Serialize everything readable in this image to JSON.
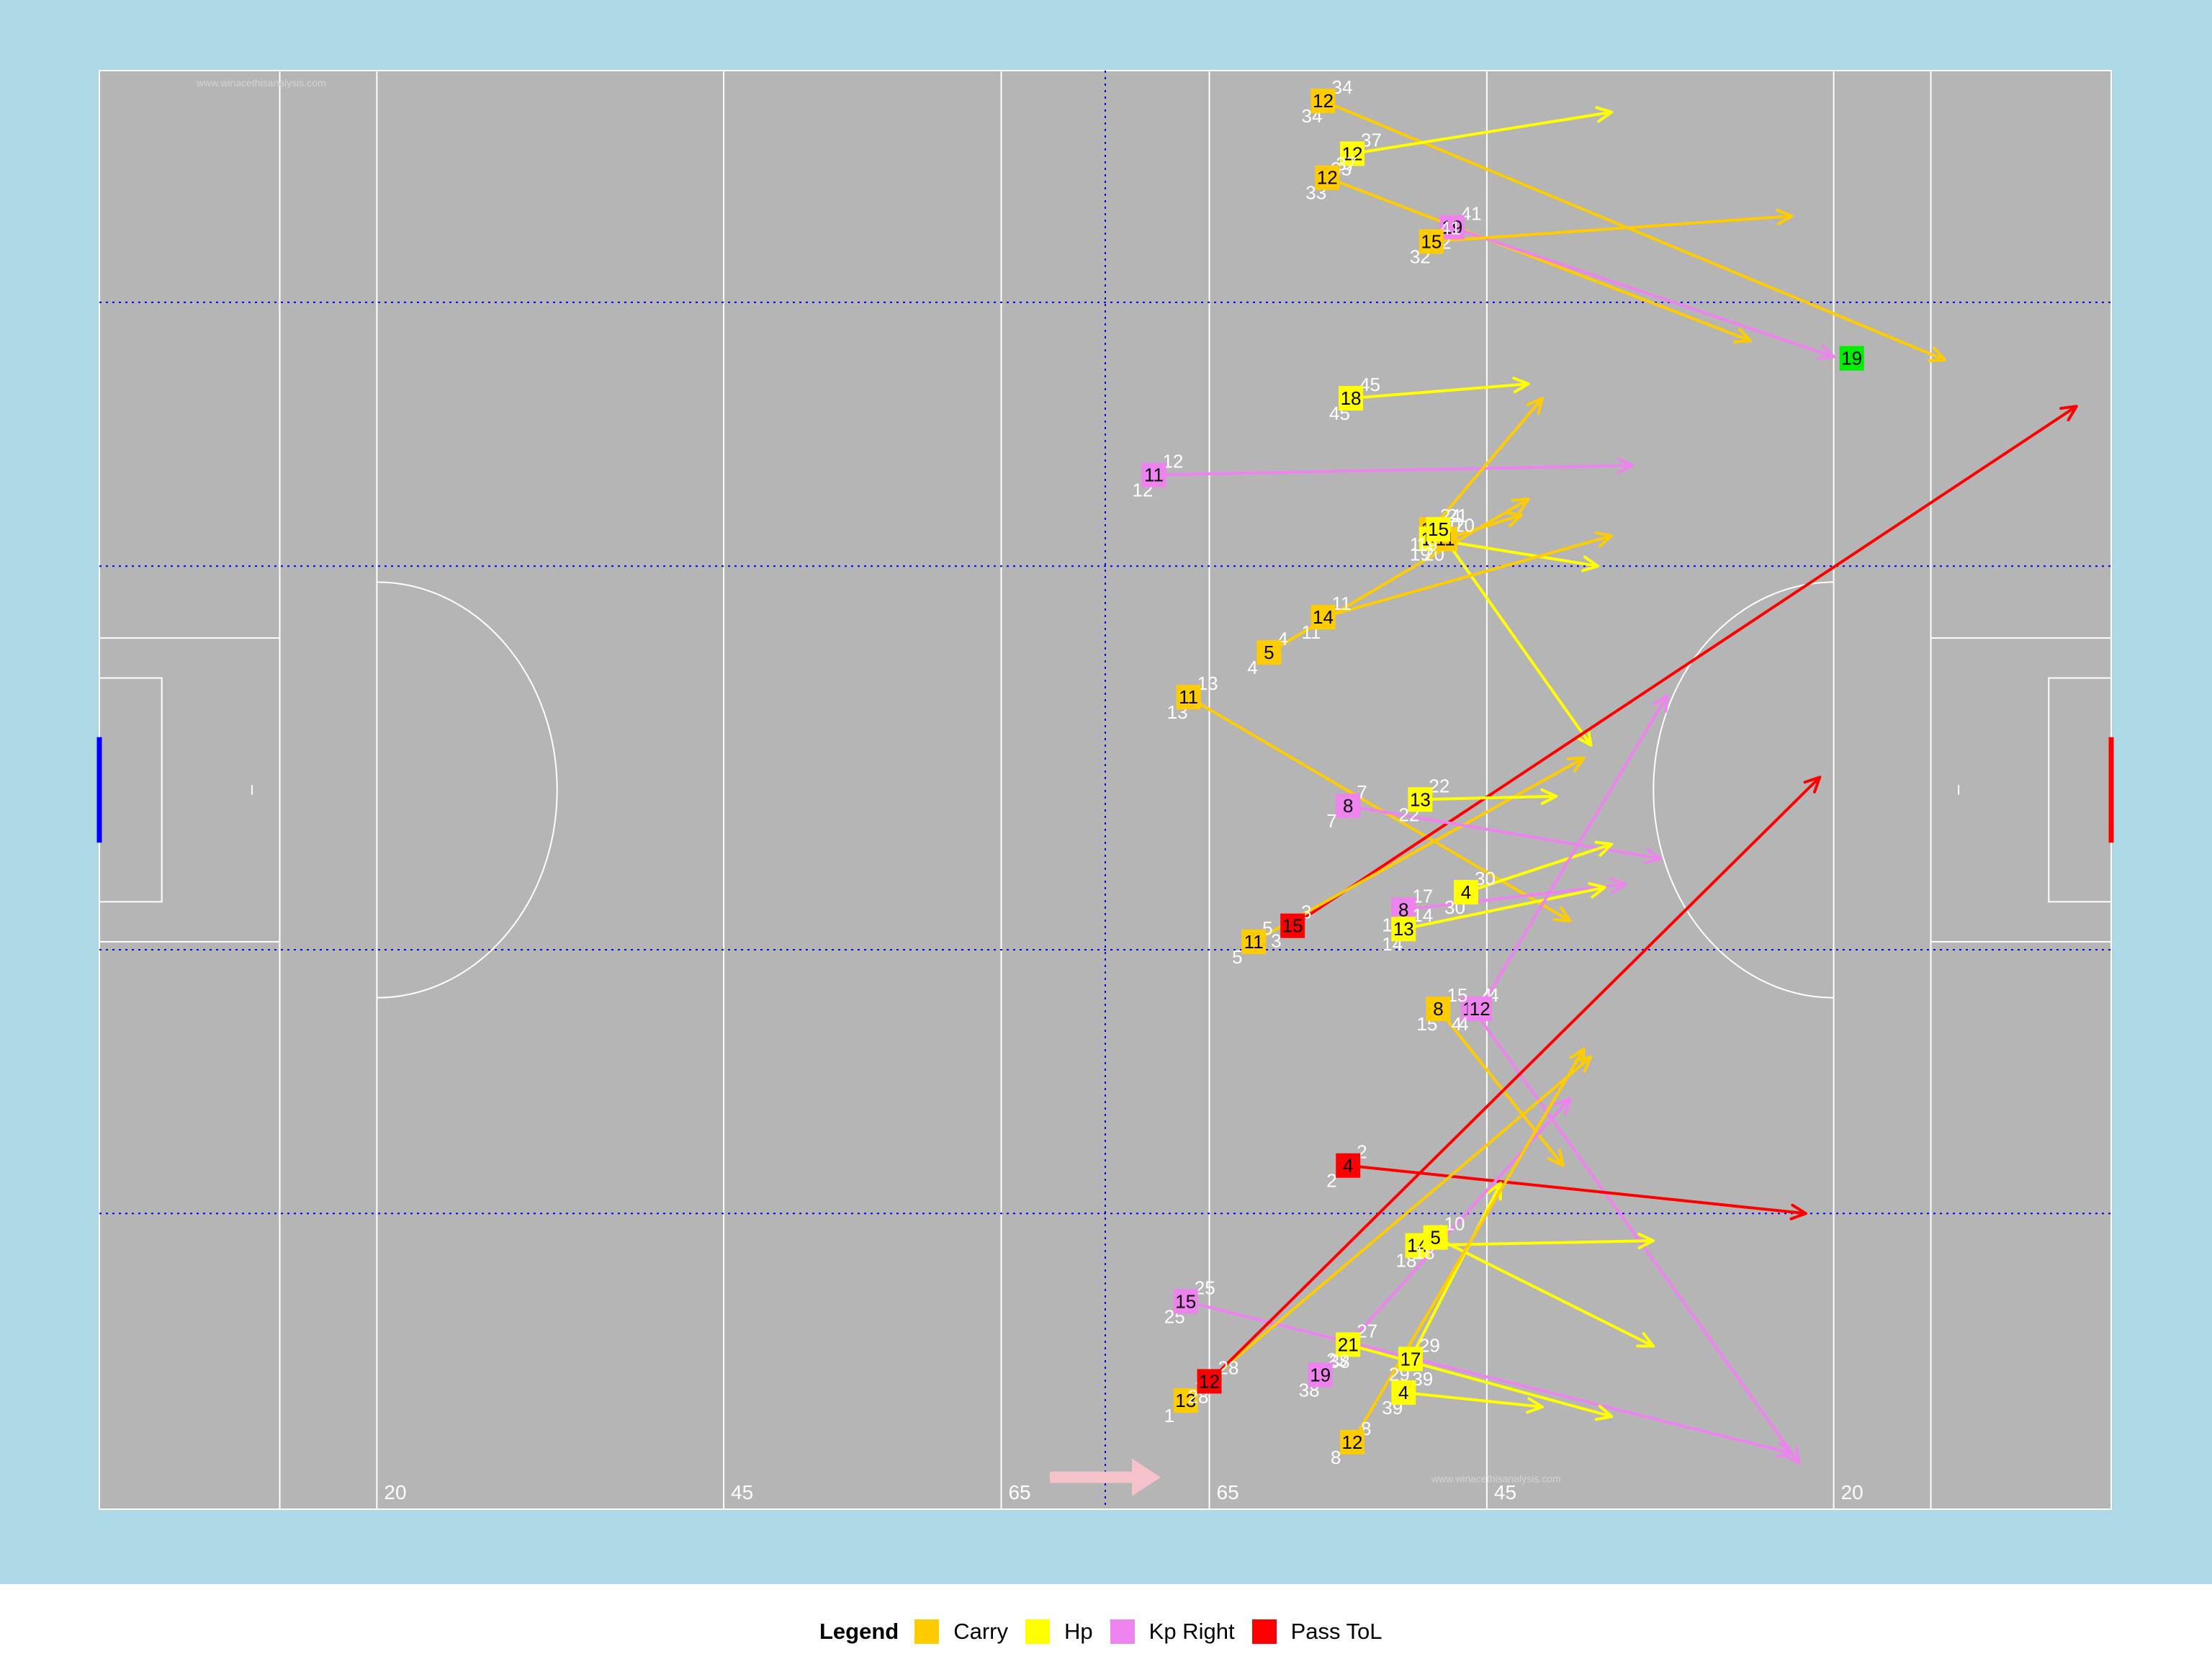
{
  "chart_data": {
    "type": "scatter",
    "x_range": [
      0,
      145
    ],
    "y_range": [
      0,
      90
    ],
    "colors": {
      "background": "#add8e6",
      "pitch": "#b5b5b5",
      "lines": "#ffffff",
      "grid": "#0000ff",
      "left_goal": "#0000ff",
      "right_goal": "#ff0000",
      "direction_arrow": "#f4c2c8",
      "label": "#ffffff"
    },
    "pitch_labels": [
      {
        "text": "20",
        "x": 20
      },
      {
        "text": "45",
        "x": 45
      },
      {
        "text": "65",
        "x": 65
      },
      {
        "text": "65",
        "x": 80
      },
      {
        "text": "45",
        "x": 100
      },
      {
        "text": "20",
        "x": 125
      }
    ],
    "watermark": "www.winacethisanalysis.com",
    "legend": {
      "title": "Legend",
      "items": [
        {
          "label": "Carry",
          "color": "#ffcc00"
        },
        {
          "label": "Hp",
          "color": "#ffff00"
        },
        {
          "label": "Kp Right",
          "color": "#ee82ee"
        },
        {
          "label": "Pass ToL",
          "color": "#ff0000"
        }
      ]
    },
    "events": [
      {
        "type": "Carry",
        "player": "12",
        "x1": 88.2,
        "y1": 88.1,
        "x2": 133.0,
        "y2": 71.9,
        "na": "34",
        "nb": "34"
      },
      {
        "type": "Hp",
        "player": "12",
        "x1": 90.3,
        "y1": 84.8,
        "x2": 109.0,
        "y2": 87.4,
        "na": "37",
        "nb": "33"
      },
      {
        "type": "Carry",
        "player": "12",
        "x1": 88.5,
        "y1": 83.3,
        "x2": 119.0,
        "y2": 73.1,
        "na": "37",
        "nb": "33"
      },
      {
        "type": "Kp Right",
        "player": "19",
        "x1": 97.5,
        "y1": 80.2,
        "x2": 125.0,
        "y2": 72.1,
        "na": "41",
        "nb": "32"
      },
      {
        "type": "Carry",
        "player": "15",
        "x1": 96.0,
        "y1": 79.3,
        "x2": 122.0,
        "y2": 80.9,
        "na": "41",
        "nb": "32"
      },
      {
        "type": "Hp",
        "player": "18",
        "x1": 90.2,
        "y1": 69.5,
        "x2": 103.0,
        "y2": 70.4,
        "na": "45",
        "nb": "45"
      },
      {
        "type": "Kp Right",
        "player": "11",
        "x1": 76.0,
        "y1": 64.7,
        "x2": 110.5,
        "y2": 65.3,
        "na": "12",
        "nb": "12"
      },
      {
        "type": "Carry",
        "player": "15",
        "x1": 96.0,
        "y1": 61.3,
        "x2": 104.0,
        "y2": 69.5,
        "na": "24",
        "nb": "19"
      },
      {
        "type": "Hp",
        "player": "14",
        "x1": 96.0,
        "y1": 60.7,
        "x2": 108.0,
        "y2": 59.0,
        "na": "20",
        "nb": "19"
      },
      {
        "type": "Carry",
        "player": "11",
        "x1": 97.0,
        "y1": 60.7,
        "x2": 102.5,
        "y2": 62.2,
        "na": "20",
        "nb": "20"
      },
      {
        "type": "Hp",
        "player": "15",
        "x1": 96.5,
        "y1": 61.3,
        "x2": 107.5,
        "y2": 47.8,
        "na": "21",
        "nb": "19"
      },
      {
        "type": "Carry",
        "player": "14",
        "x1": 88.2,
        "y1": 55.8,
        "x2": 109.0,
        "y2": 60.9,
        "na": "11",
        "nb": "11"
      },
      {
        "type": "Carry",
        "player": "5",
        "x1": 84.3,
        "y1": 53.6,
        "x2": 103.0,
        "y2": 63.2,
        "na": "4",
        "nb": "4"
      },
      {
        "type": "Carry",
        "player": "11",
        "x1": 78.5,
        "y1": 50.8,
        "x2": 106.0,
        "y2": 36.8,
        "na": "13",
        "nb": "13"
      },
      {
        "type": "Pass ToL",
        "player": "15",
        "x1": 86.0,
        "y1": 36.5,
        "x2": 142.5,
        "y2": 69.0,
        "na": "3",
        "nb": "3"
      },
      {
        "type": "Carry",
        "player": "11",
        "x1": 83.2,
        "y1": 35.5,
        "x2": 107.0,
        "y2": 47.0,
        "na": "5",
        "nb": "5"
      },
      {
        "type": "Hp",
        "player": "13",
        "x1": 95.2,
        "y1": 44.4,
        "x2": 105.0,
        "y2": 44.6,
        "na": "22",
        "nb": "22"
      },
      {
        "type": "Kp Right",
        "player": "8",
        "x1": 90.0,
        "y1": 44.0,
        "x2": 112.5,
        "y2": 40.7,
        "na": "7",
        "nb": "7"
      },
      {
        "type": "Kp Right",
        "player": "8",
        "x1": 94.0,
        "y1": 37.5,
        "x2": 110.0,
        "y2": 39.1,
        "na": "17",
        "nb": "17"
      },
      {
        "type": "Hp",
        "player": "4",
        "x1": 98.5,
        "y1": 38.6,
        "x2": 109.0,
        "y2": 41.6,
        "na": "30",
        "nb": "30"
      },
      {
        "type": "Hp",
        "player": "13",
        "x1": 94.0,
        "y1": 36.3,
        "x2": 108.5,
        "y2": 38.9,
        "na": "14",
        "nb": "14"
      },
      {
        "type": "Kp Right",
        "player": "12",
        "x1": 99.0,
        "y1": 31.3,
        "x2": 122.5,
        "y2": 2.9,
        "na": "4",
        "nb": "4"
      },
      {
        "type": "Kp Right",
        "player": "12",
        "x1": 99.5,
        "y1": 31.3,
        "x2": 113.0,
        "y2": 50.9,
        "na": "4",
        "nb": "4"
      },
      {
        "type": "Carry",
        "player": "8",
        "x1": 96.5,
        "y1": 31.3,
        "x2": 105.5,
        "y2": 21.5,
        "na": "15",
        "nb": "15"
      },
      {
        "type": "Pass ToL",
        "player": "4",
        "x1": 90.0,
        "y1": 21.5,
        "x2": 123.0,
        "y2": 18.5,
        "na": "2",
        "nb": "2"
      },
      {
        "type": "Hp",
        "player": "14",
        "x1": 95.0,
        "y1": 16.5,
        "x2": 112.0,
        "y2": 16.8,
        "na": "10",
        "nb": "18"
      },
      {
        "type": "Hp",
        "player": "5",
        "x1": 96.3,
        "y1": 17.0,
        "x2": 112.0,
        "y2": 10.2,
        "na": "10",
        "nb": "18"
      },
      {
        "type": "Kp Right",
        "player": "15",
        "x1": 78.3,
        "y1": 13.0,
        "x2": 122.0,
        "y2": 3.5,
        "na": "25",
        "nb": "25"
      },
      {
        "type": "Hp",
        "player": "21",
        "x1": 90.0,
        "y1": 10.3,
        "x2": 109.0,
        "y2": 5.8,
        "na": "27",
        "nb": "23"
      },
      {
        "type": "Hp",
        "player": "17",
        "x1": 94.5,
        "y1": 9.4,
        "x2": 101.0,
        "y2": 20.4,
        "na": "29",
        "nb": "29"
      },
      {
        "type": "Hp",
        "player": "4",
        "x1": 94.0,
        "y1": 7.3,
        "x2": 104.0,
        "y2": 6.4,
        "na": "39",
        "nb": "39"
      },
      {
        "type": "Kp Right",
        "player": "19",
        "x1": 88.0,
        "y1": 8.4,
        "x2": 106.0,
        "y2": 25.7,
        "na": "38",
        "nb": "38"
      },
      {
        "type": "Carry",
        "player": "13",
        "x1": 78.3,
        "y1": 6.8,
        "x2": 107.5,
        "y2": 28.3,
        "na": "1",
        "nb": "1"
      },
      {
        "type": "Pass ToL",
        "player": "12",
        "x1": 80.0,
        "y1": 8.0,
        "x2": 124.0,
        "y2": 45.8,
        "na": "28",
        "nb": "28"
      },
      {
        "type": "Carry",
        "player": "12",
        "x1": 90.3,
        "y1": 4.2,
        "x2": 107.0,
        "y2": 28.8,
        "na": "8",
        "nb": "8"
      }
    ],
    "targets": [
      {
        "player": "19",
        "x": 126.3,
        "y": 72.0,
        "color": "#00ee00"
      }
    ]
  }
}
